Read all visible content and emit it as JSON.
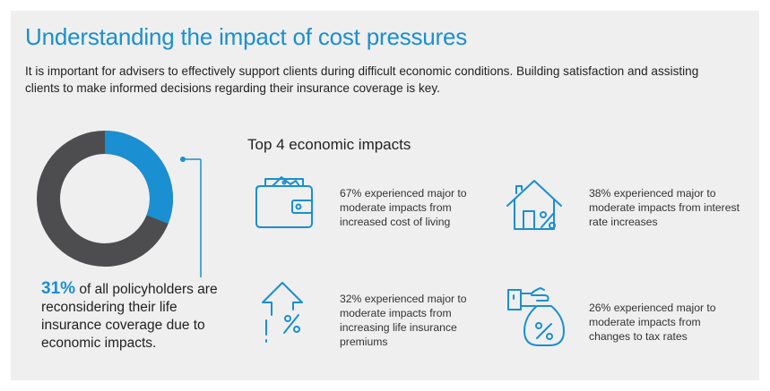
{
  "title": "Understanding the impact of cost pressures",
  "intro": "It is important for advisers to effectively support clients during difficult economic conditions. Building satisfaction and assisting clients to make informed decisions regarding their insurance coverage is key.",
  "donut": {
    "highlight_percent": 31,
    "highlight_color": "#1a8fd1",
    "remainder_color": "#4d4d4f"
  },
  "stat": {
    "value": "31%",
    "text": " of all policyholders are reconsidering their life insurance coverage due to economic impacts."
  },
  "impacts_heading": "Top 4 economic impacts",
  "impacts": [
    {
      "icon": "wallet-icon",
      "text": "67% experienced major to moderate impacts from increased cost of living"
    },
    {
      "icon": "house-percent-icon",
      "text": "38% experienced major to moderate impacts from interest rate increases"
    },
    {
      "icon": "arrow-up-percent-icon",
      "text": "32% experienced major to moderate impacts from increasing life insurance premiums"
    },
    {
      "icon": "money-bag-percent-icon",
      "text": "26% experienced major to moderate impacts from changes to tax rates"
    }
  ],
  "colors": {
    "accent": "#1a8fd1",
    "background": "#efefef",
    "text": "#222222"
  }
}
